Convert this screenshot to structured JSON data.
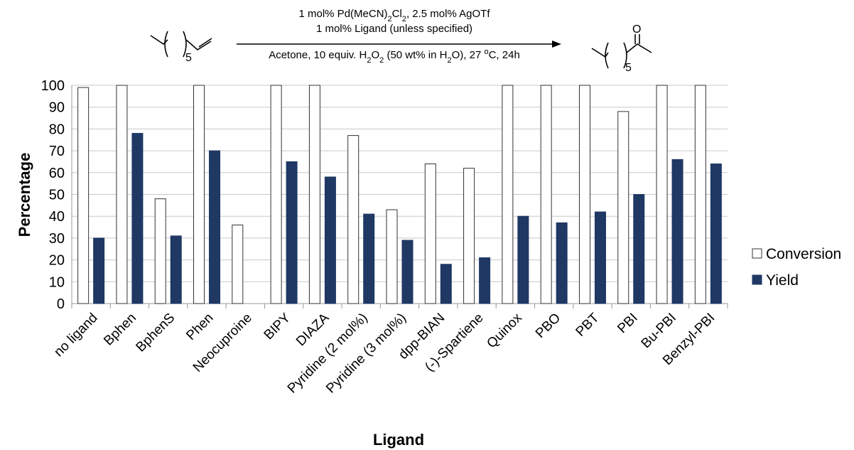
{
  "reaction": {
    "conditions_above": [
      {
        "parts": [
          "1 mol% Pd(MeCN)",
          {
            "sub": "2"
          },
          "Cl",
          {
            "sub": "2"
          },
          ", 2.5 mol% AgOTf"
        ]
      },
      {
        "parts": [
          "1 mol% Ligand (unless specified)"
        ]
      }
    ],
    "conditions_below": {
      "parts": [
        "Acetone, 10 equiv. H",
        {
          "sub": "2"
        },
        "O",
        {
          "sub": "2"
        },
        " (50 wt% in H",
        {
          "sub": "2"
        },
        "O), 27 ",
        {
          "sup": "o"
        },
        "C, 24h"
      ]
    },
    "reactant_subscript": "5",
    "product_subscript": "5",
    "product_atom": "O"
  },
  "chart_data": {
    "type": "bar",
    "xlabel": "Ligand",
    "ylabel": "Percentage",
    "ylim": [
      0,
      100
    ],
    "yticks": [
      0,
      10,
      20,
      30,
      40,
      50,
      60,
      70,
      80,
      90,
      100
    ],
    "grid": true,
    "legend_position": "right",
    "categories": [
      "no ligand",
      "Bphen",
      "BphenS",
      "Phen",
      "Neocuproine",
      "BIPY",
      "DIAZA",
      "Pyridine (2 mol%)",
      "Pyridine (3 mol%)",
      "dpp-BIAN",
      "(-)-Spartiene",
      "Quinox",
      "PBO",
      "PBT",
      "PBI",
      "Bu-PBI",
      "Benzyl-PBI"
    ],
    "series": [
      {
        "name": "Conversion",
        "color": "#ffffff",
        "stroke": "#333333",
        "values": [
          99,
          100,
          48,
          100,
          36,
          100,
          100,
          77,
          43,
          64,
          62,
          100,
          100,
          100,
          88,
          100,
          100
        ]
      },
      {
        "name": "Yield",
        "color": "#1f3864",
        "stroke": "#1f3864",
        "values": [
          30,
          78,
          31,
          70,
          0,
          65,
          58,
          41,
          29,
          18,
          21,
          40,
          37,
          42,
          50,
          66,
          64
        ]
      }
    ]
  }
}
